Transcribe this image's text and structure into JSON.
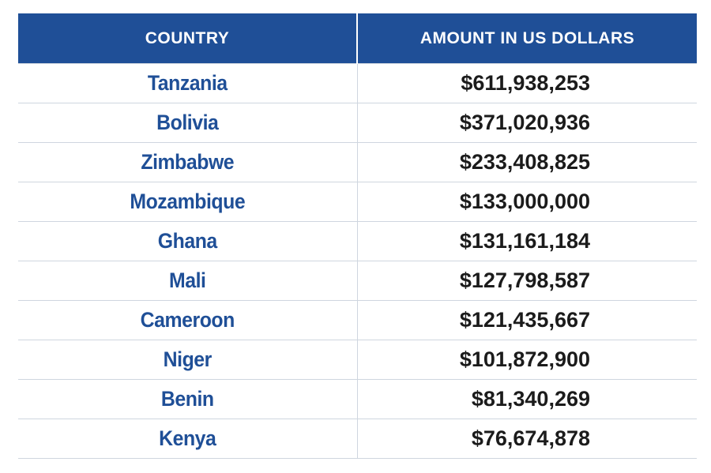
{
  "table": {
    "headers": {
      "country": "COUNTRY",
      "amount": "AMOUNT IN US DOLLARS"
    },
    "rows": [
      {
        "country": "Tanzania",
        "amount": "$611,938,253"
      },
      {
        "country": "Bolivia",
        "amount": "$371,020,936"
      },
      {
        "country": "Zimbabwe",
        "amount": "$233,408,825"
      },
      {
        "country": "Mozambique",
        "amount": "$133,000,000"
      },
      {
        "country": "Ghana",
        "amount": "$131,161,184"
      },
      {
        "country": "Mali",
        "amount": "$127,798,587"
      },
      {
        "country": "Cameroon",
        "amount": "$121,435,667"
      },
      {
        "country": "Niger",
        "amount": "$101,872,900"
      },
      {
        "country": "Benin",
        "amount": "$81,340,269"
      },
      {
        "country": "Kenya",
        "amount": "$76,674,878"
      }
    ]
  },
  "colors": {
    "header_bg": "#1f4f97",
    "country_text": "#1f4f97",
    "amount_text": "#1b1b1b",
    "rule": "#cfd6df"
  }
}
